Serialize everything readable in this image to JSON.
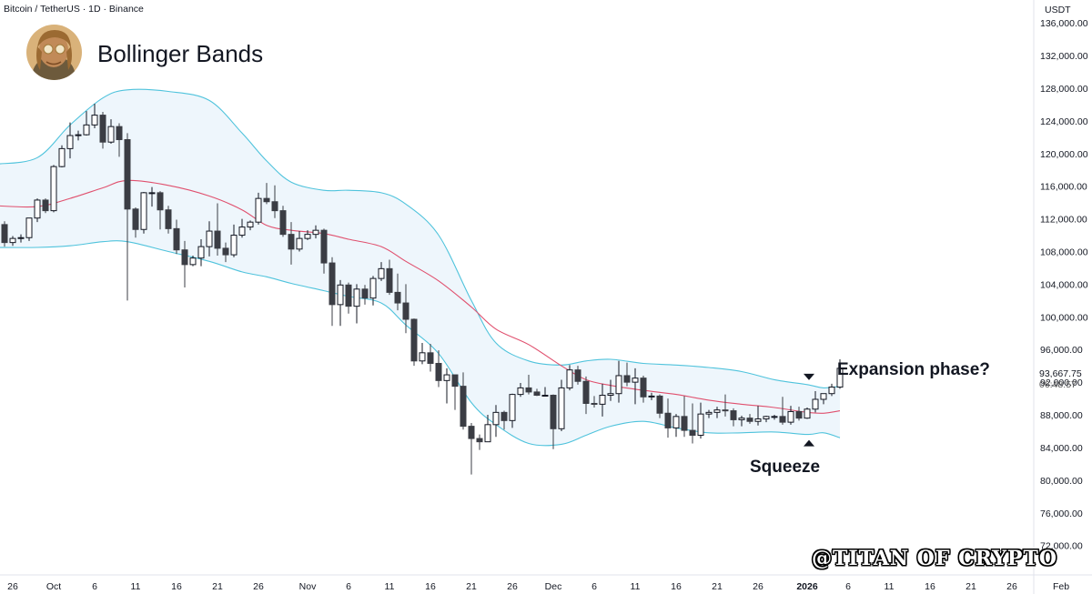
{
  "header": {
    "symbol_line": "Bitcoin / TetherUS · 1D · Binance",
    "currency": "USDT"
  },
  "indicator": {
    "title": "Bollinger Bands"
  },
  "last_price": {
    "value": "93,667.75",
    "countdown": "06:48:57"
  },
  "annotations": {
    "expansion": "Expansion phase?",
    "squeeze": "Squeeze"
  },
  "watermark": "@TITAN OF CRYPTO",
  "colors": {
    "band": "#4fc3dc",
    "band_fill": "#eef6fc",
    "basis": "#e0506e",
    "up_border": "#131722",
    "up_fill": "#ffffff",
    "down": "#3b3d44",
    "grid_axis": "#e0e3eb"
  },
  "icons": {
    "avatar": "avatar-portrait",
    "squeeze_top": "triangle-down-icon",
    "squeeze_bottom": "triangle-up-icon"
  },
  "chart_data": {
    "type": "candlestick",
    "title": "Bitcoin / TetherUS · 1D · Binance",
    "ylabel": "USDT",
    "ylim": [
      68400,
      138800
    ],
    "y_ticks": [
      72000,
      76000,
      80000,
      84000,
      88000,
      92000,
      96000,
      100000,
      104000,
      108000,
      112000,
      116000,
      120000,
      124000,
      128000,
      132000,
      136000
    ],
    "y_tick_labels": [
      "72,000.00",
      "76,000.00",
      "80,000.00",
      "84,000.00",
      "88,000.00",
      "92,000.00",
      "96,000.00",
      "100,000.00",
      "104,000.00",
      "108,000.00",
      "112,000.00",
      "116,000.00",
      "120,000.00",
      "124,000.00",
      "128,000.00",
      "132,000.00",
      "136,000.00"
    ],
    "x_labels": [
      {
        "date": "2025-09-26",
        "label": "26"
      },
      {
        "date": "2025-10-01",
        "label": "Oct"
      },
      {
        "date": "2025-10-06",
        "label": "6"
      },
      {
        "date": "2025-10-11",
        "label": "11"
      },
      {
        "date": "2025-10-16",
        "label": "16"
      },
      {
        "date": "2025-10-21",
        "label": "21"
      },
      {
        "date": "2025-10-26",
        "label": "26"
      },
      {
        "date": "2025-11-01",
        "label": "Nov"
      },
      {
        "date": "2025-11-06",
        "label": "6"
      },
      {
        "date": "2025-11-11",
        "label": "11"
      },
      {
        "date": "2025-11-16",
        "label": "16"
      },
      {
        "date": "2025-11-21",
        "label": "21"
      },
      {
        "date": "2025-11-26",
        "label": "26"
      },
      {
        "date": "2025-12-01",
        "label": "Dec"
      },
      {
        "date": "2025-12-06",
        "label": "6"
      },
      {
        "date": "2025-12-11",
        "label": "11"
      },
      {
        "date": "2025-12-16",
        "label": "16"
      },
      {
        "date": "2025-12-21",
        "label": "21"
      },
      {
        "date": "2025-12-26",
        "label": "26"
      },
      {
        "date": "2026-01-01",
        "label": "2026"
      },
      {
        "date": "2026-01-06",
        "label": "6"
      },
      {
        "date": "2026-01-11",
        "label": "11"
      },
      {
        "date": "2026-01-16",
        "label": "16"
      },
      {
        "date": "2026-01-21",
        "label": "21"
      },
      {
        "date": "2026-01-26",
        "label": "26"
      },
      {
        "date": "2026-02-01",
        "label": "Feb"
      }
    ],
    "x_range": [
      "2025-09-24",
      "2026-02-02"
    ],
    "ohlc": [
      {
        "d": "2025-09-24",
        "o": 113300,
        "h": 113900,
        "l": 110800,
        "c": 111300
      },
      {
        "d": "2025-09-25",
        "o": 111300,
        "h": 111700,
        "l": 108600,
        "c": 109100
      },
      {
        "d": "2025-09-26",
        "o": 109100,
        "h": 109900,
        "l": 108700,
        "c": 109600
      },
      {
        "d": "2025-09-27",
        "o": 109600,
        "h": 110100,
        "l": 109100,
        "c": 109700
      },
      {
        "d": "2025-09-28",
        "o": 109700,
        "h": 112100,
        "l": 109300,
        "c": 112100
      },
      {
        "d": "2025-09-29",
        "o": 112100,
        "h": 114500,
        "l": 111600,
        "c": 114300
      },
      {
        "d": "2025-09-30",
        "o": 114300,
        "h": 114500,
        "l": 112700,
        "c": 113000
      },
      {
        "d": "2025-10-01",
        "o": 113000,
        "h": 118600,
        "l": 112800,
        "c": 118400
      },
      {
        "d": "2025-10-02",
        "o": 118400,
        "h": 121000,
        "l": 118300,
        "c": 120600
      },
      {
        "d": "2025-10-03",
        "o": 120600,
        "h": 123800,
        "l": 119400,
        "c": 122200
      },
      {
        "d": "2025-10-04",
        "o": 122200,
        "h": 122800,
        "l": 121600,
        "c": 122300
      },
      {
        "d": "2025-10-05",
        "o": 122300,
        "h": 125200,
        "l": 122200,
        "c": 123500
      },
      {
        "d": "2025-10-06",
        "o": 123500,
        "h": 126100,
        "l": 123100,
        "c": 124700
      },
      {
        "d": "2025-10-07",
        "o": 124700,
        "h": 125100,
        "l": 120600,
        "c": 121400
      },
      {
        "d": "2025-10-08",
        "o": 121400,
        "h": 124200,
        "l": 121200,
        "c": 123300
      },
      {
        "d": "2025-10-09",
        "o": 123300,
        "h": 123700,
        "l": 119600,
        "c": 121700
      },
      {
        "d": "2025-10-10",
        "o": 121700,
        "h": 122500,
        "l": 102000,
        "c": 113200
      },
      {
        "d": "2025-10-11",
        "o": 113200,
        "h": 113400,
        "l": 109700,
        "c": 110700
      },
      {
        "d": "2025-10-12",
        "o": 110700,
        "h": 115300,
        "l": 110200,
        "c": 115200
      },
      {
        "d": "2025-10-13",
        "o": 115200,
        "h": 115900,
        "l": 113500,
        "c": 115200
      },
      {
        "d": "2025-10-14",
        "o": 115200,
        "h": 115400,
        "l": 110700,
        "c": 113100
      },
      {
        "d": "2025-10-15",
        "o": 113100,
        "h": 113600,
        "l": 110200,
        "c": 110800
      },
      {
        "d": "2025-10-16",
        "o": 110800,
        "h": 111900,
        "l": 107700,
        "c": 108200
      },
      {
        "d": "2025-10-17",
        "o": 108200,
        "h": 109300,
        "l": 103600,
        "c": 106400
      },
      {
        "d": "2025-10-18",
        "o": 106400,
        "h": 107500,
        "l": 106200,
        "c": 107200
      },
      {
        "d": "2025-10-19",
        "o": 107200,
        "h": 109500,
        "l": 106200,
        "c": 108600
      },
      {
        "d": "2025-10-20",
        "o": 108600,
        "h": 111700,
        "l": 107400,
        "c": 110500
      },
      {
        "d": "2025-10-21",
        "o": 110500,
        "h": 113900,
        "l": 107500,
        "c": 108400
      },
      {
        "d": "2025-10-22",
        "o": 108400,
        "h": 109100,
        "l": 106700,
        "c": 107600
      },
      {
        "d": "2025-10-23",
        "o": 107600,
        "h": 111300,
        "l": 107300,
        "c": 110000
      },
      {
        "d": "2025-10-24",
        "o": 110000,
        "h": 112000,
        "l": 109700,
        "c": 111000
      },
      {
        "d": "2025-10-25",
        "o": 111000,
        "h": 111800,
        "l": 110600,
        "c": 111600
      },
      {
        "d": "2025-10-26",
        "o": 111600,
        "h": 115200,
        "l": 111300,
        "c": 114500
      },
      {
        "d": "2025-10-27",
        "o": 114500,
        "h": 116400,
        "l": 113800,
        "c": 114100
      },
      {
        "d": "2025-10-28",
        "o": 114100,
        "h": 116100,
        "l": 112100,
        "c": 113000
      },
      {
        "d": "2025-10-29",
        "o": 113000,
        "h": 113600,
        "l": 109800,
        "c": 110100
      },
      {
        "d": "2025-10-30",
        "o": 110100,
        "h": 111600,
        "l": 106400,
        "c": 108300
      },
      {
        "d": "2025-10-31",
        "o": 108300,
        "h": 110500,
        "l": 108000,
        "c": 109600
      },
      {
        "d": "2025-11-01",
        "o": 109600,
        "h": 110600,
        "l": 109400,
        "c": 110100
      },
      {
        "d": "2025-11-02",
        "o": 110100,
        "h": 111200,
        "l": 109600,
        "c": 110600
      },
      {
        "d": "2025-11-03",
        "o": 110600,
        "h": 110800,
        "l": 105300,
        "c": 106600
      },
      {
        "d": "2025-11-04",
        "o": 106600,
        "h": 107300,
        "l": 98900,
        "c": 101500
      },
      {
        "d": "2025-11-05",
        "o": 101500,
        "h": 104500,
        "l": 98900,
        "c": 103900
      },
      {
        "d": "2025-11-06",
        "o": 103900,
        "h": 104200,
        "l": 100400,
        "c": 101300
      },
      {
        "d": "2025-11-07",
        "o": 101300,
        "h": 104000,
        "l": 99200,
        "c": 103400
      },
      {
        "d": "2025-11-08",
        "o": 103400,
        "h": 103900,
        "l": 101500,
        "c": 102300
      },
      {
        "d": "2025-11-09",
        "o": 102300,
        "h": 105000,
        "l": 101400,
        "c": 104700
      },
      {
        "d": "2025-11-10",
        "o": 104700,
        "h": 106700,
        "l": 104400,
        "c": 105900
      },
      {
        "d": "2025-11-11",
        "o": 105900,
        "h": 107000,
        "l": 102700,
        "c": 103000
      },
      {
        "d": "2025-11-12",
        "o": 103000,
        "h": 105300,
        "l": 100800,
        "c": 101700
      },
      {
        "d": "2025-11-13",
        "o": 101700,
        "h": 104000,
        "l": 98000,
        "c": 99700
      },
      {
        "d": "2025-11-14",
        "o": 99700,
        "h": 99800,
        "l": 94000,
        "c": 94600
      },
      {
        "d": "2025-11-15",
        "o": 94600,
        "h": 96800,
        "l": 94200,
        "c": 95600
      },
      {
        "d": "2025-11-16",
        "o": 95600,
        "h": 96700,
        "l": 93300,
        "c": 94300
      },
      {
        "d": "2025-11-17",
        "o": 94300,
        "h": 95900,
        "l": 91400,
        "c": 92200
      },
      {
        "d": "2025-11-18",
        "o": 92200,
        "h": 93700,
        "l": 89400,
        "c": 92900
      },
      {
        "d": "2025-11-19",
        "o": 92900,
        "h": 92900,
        "l": 88600,
        "c": 91500
      },
      {
        "d": "2025-11-20",
        "o": 91500,
        "h": 93200,
        "l": 86200,
        "c": 86600
      },
      {
        "d": "2025-11-21",
        "o": 86600,
        "h": 87000,
        "l": 80700,
        "c": 85100
      },
      {
        "d": "2025-11-22",
        "o": 85100,
        "h": 85600,
        "l": 83700,
        "c": 84700
      },
      {
        "d": "2025-11-23",
        "o": 84700,
        "h": 88000,
        "l": 84700,
        "c": 86800
      },
      {
        "d": "2025-11-24",
        "o": 86800,
        "h": 89200,
        "l": 85300,
        "c": 88300
      },
      {
        "d": "2025-11-25",
        "o": 88300,
        "h": 88500,
        "l": 86200,
        "c": 87300
      },
      {
        "d": "2025-11-26",
        "o": 87300,
        "h": 90600,
        "l": 86400,
        "c": 90500
      },
      {
        "d": "2025-11-27",
        "o": 90500,
        "h": 91900,
        "l": 90200,
        "c": 91300
      },
      {
        "d": "2025-11-28",
        "o": 91300,
        "h": 92900,
        "l": 90500,
        "c": 90800
      },
      {
        "d": "2025-11-29",
        "o": 90800,
        "h": 91200,
        "l": 90300,
        "c": 90400
      },
      {
        "d": "2025-11-30",
        "o": 90400,
        "h": 91400,
        "l": 90300,
        "c": 90400
      },
      {
        "d": "2025-12-01",
        "o": 90400,
        "h": 90500,
        "l": 83800,
        "c": 86300
      },
      {
        "d": "2025-12-02",
        "o": 86300,
        "h": 92300,
        "l": 86000,
        "c": 91300
      },
      {
        "d": "2025-12-03",
        "o": 91300,
        "h": 94100,
        "l": 91000,
        "c": 93500
      },
      {
        "d": "2025-12-04",
        "o": 93500,
        "h": 94000,
        "l": 91700,
        "c": 92100
      },
      {
        "d": "2025-12-05",
        "o": 92100,
        "h": 92700,
        "l": 88100,
        "c": 89400
      },
      {
        "d": "2025-12-06",
        "o": 89400,
        "h": 90300,
        "l": 88900,
        "c": 89300
      },
      {
        "d": "2025-12-07",
        "o": 89300,
        "h": 91800,
        "l": 87800,
        "c": 90400
      },
      {
        "d": "2025-12-08",
        "o": 90400,
        "h": 92300,
        "l": 89700,
        "c": 90600
      },
      {
        "d": "2025-12-09",
        "o": 90600,
        "h": 94600,
        "l": 89500,
        "c": 92800
      },
      {
        "d": "2025-12-10",
        "o": 92800,
        "h": 94400,
        "l": 91500,
        "c": 92000
      },
      {
        "d": "2025-12-11",
        "o": 92000,
        "h": 93700,
        "l": 89300,
        "c": 92500
      },
      {
        "d": "2025-12-12",
        "o": 92500,
        "h": 92800,
        "l": 89500,
        "c": 90200
      },
      {
        "d": "2025-12-13",
        "o": 90200,
        "h": 90700,
        "l": 89800,
        "c": 90300
      },
      {
        "d": "2025-12-14",
        "o": 90300,
        "h": 90500,
        "l": 87600,
        "c": 88200
      },
      {
        "d": "2025-12-15",
        "o": 88200,
        "h": 90000,
        "l": 85200,
        "c": 86400
      },
      {
        "d": "2025-12-16",
        "o": 86400,
        "h": 88100,
        "l": 85300,
        "c": 87800
      },
      {
        "d": "2025-12-17",
        "o": 87800,
        "h": 90300,
        "l": 85300,
        "c": 86100
      },
      {
        "d": "2025-12-18",
        "o": 86100,
        "h": 89400,
        "l": 84500,
        "c": 85500
      },
      {
        "d": "2025-12-19",
        "o": 85500,
        "h": 89500,
        "l": 85100,
        "c": 88100
      },
      {
        "d": "2025-12-20",
        "o": 88100,
        "h": 88600,
        "l": 87600,
        "c": 88300
      },
      {
        "d": "2025-12-21",
        "o": 88300,
        "h": 89000,
        "l": 87600,
        "c": 88600
      },
      {
        "d": "2025-12-22",
        "o": 88600,
        "h": 90500,
        "l": 87800,
        "c": 88500
      },
      {
        "d": "2025-12-23",
        "o": 88500,
        "h": 88800,
        "l": 86600,
        "c": 87400
      },
      {
        "d": "2025-12-24",
        "o": 87400,
        "h": 87900,
        "l": 86600,
        "c": 87600
      },
      {
        "d": "2025-12-25",
        "o": 87600,
        "h": 88100,
        "l": 86900,
        "c": 87200
      },
      {
        "d": "2025-12-26",
        "o": 87200,
        "h": 89100,
        "l": 86700,
        "c": 87500
      },
      {
        "d": "2025-12-27",
        "o": 87500,
        "h": 87900,
        "l": 87100,
        "c": 87800
      },
      {
        "d": "2025-12-28",
        "o": 87800,
        "h": 88000,
        "l": 87400,
        "c": 87800
      },
      {
        "d": "2025-12-29",
        "o": 87800,
        "h": 90200,
        "l": 86800,
        "c": 87100
      },
      {
        "d": "2025-12-30",
        "o": 87100,
        "h": 89100,
        "l": 86800,
        "c": 88400
      },
      {
        "d": "2025-12-31",
        "o": 88400,
        "h": 89000,
        "l": 87300,
        "c": 87600
      },
      {
        "d": "2026-01-01",
        "o": 87600,
        "h": 88900,
        "l": 87500,
        "c": 88700
      },
      {
        "d": "2026-01-02",
        "o": 88700,
        "h": 90900,
        "l": 88300,
        "c": 89900
      },
      {
        "d": "2026-01-03",
        "o": 89900,
        "h": 90500,
        "l": 89300,
        "c": 90600
      },
      {
        "d": "2026-01-04",
        "o": 90600,
        "h": 91800,
        "l": 90300,
        "c": 91400
      },
      {
        "d": "2026-01-05",
        "o": 91400,
        "h": 94800,
        "l": 91200,
        "c": 93700
      }
    ],
    "bollinger": {
      "dates": [
        "2025-09-24",
        "2025-09-29",
        "2025-10-03",
        "2025-10-07",
        "2025-10-10",
        "2025-10-15",
        "2025-10-20",
        "2025-10-24",
        "2025-10-27",
        "2025-10-30",
        "2025-11-03",
        "2025-11-06",
        "2025-11-10",
        "2025-11-13",
        "2025-11-17",
        "2025-11-21",
        "2025-11-24",
        "2025-11-28",
        "2025-12-02",
        "2025-12-05",
        "2025-12-08",
        "2025-12-12",
        "2025-12-16",
        "2025-12-20",
        "2025-12-24",
        "2025-12-28",
        "2026-01-01",
        "2026-01-03",
        "2026-01-05"
      ],
      "upper": [
        118700,
        119500,
        123500,
        126800,
        127800,
        127600,
        126500,
        122500,
        119100,
        116500,
        115500,
        115500,
        115200,
        113800,
        110000,
        102000,
        96800,
        94600,
        94100,
        94600,
        94800,
        94300,
        94100,
        93800,
        93300,
        92300,
        91700,
        91300,
        91500
      ],
      "basis": [
        113600,
        113500,
        114500,
        115800,
        116700,
        116100,
        114800,
        113100,
        111200,
        110600,
        110200,
        109500,
        108600,
        106800,
        104400,
        101200,
        98500,
        96600,
        94000,
        92300,
        91600,
        91000,
        90500,
        89800,
        89300,
        88900,
        88300,
        88200,
        88500
      ],
      "lower": [
        108500,
        108500,
        108700,
        109200,
        109200,
        108000,
        106800,
        105500,
        104900,
        104100,
        103200,
        102500,
        101700,
        99000,
        95500,
        89500,
        86800,
        84500,
        84400,
        85500,
        86600,
        87200,
        86400,
        85800,
        85800,
        85900,
        85600,
        85800,
        85200
      ]
    },
    "squeeze_markers": [
      "2026-01-01"
    ],
    "grid": false,
    "last_price": 93667.75
  }
}
